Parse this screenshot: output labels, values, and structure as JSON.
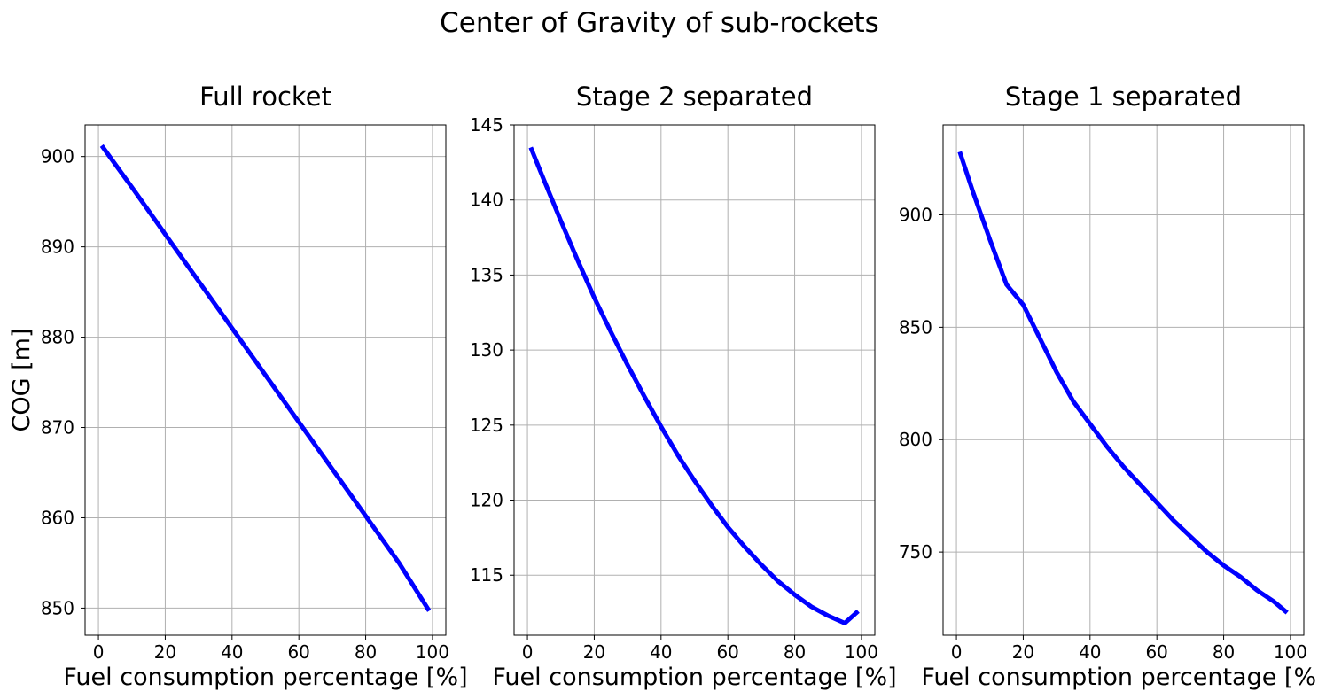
{
  "figure": {
    "suptitle": "Center of Gravity of sub-rockets"
  },
  "chart_data": [
    {
      "type": "line",
      "title": "Full rocket",
      "xlabel": "Fuel consumption percentage [%]",
      "ylabel": "COG [m]",
      "xlim": [
        -4,
        104
      ],
      "ylim": [
        847,
        903.5
      ],
      "xticks": [
        0,
        20,
        40,
        60,
        80,
        100
      ],
      "yticks": [
        850,
        860,
        870,
        880,
        890,
        900
      ],
      "grid": true,
      "color": "#0000ff",
      "series": [
        {
          "x": [
            1,
            10,
            20,
            30,
            40,
            50,
            60,
            70,
            80,
            90,
            99
          ],
          "y": [
            901.2,
            896.6,
            891.4,
            886.2,
            881.0,
            875.8,
            870.6,
            865.4,
            860.2,
            855.0,
            849.7
          ]
        }
      ]
    },
    {
      "type": "line",
      "title": "Stage 2 separated",
      "xlabel": "Fuel consumption percentage [%]",
      "ylabel": "",
      "xlim": [
        -4,
        104
      ],
      "ylim": [
        111,
        145
      ],
      "xticks": [
        0,
        20,
        40,
        60,
        80,
        100
      ],
      "yticks": [
        115,
        120,
        125,
        130,
        135,
        140,
        145
      ],
      "grid": true,
      "color": "#0000ff",
      "series": [
        {
          "x": [
            1,
            5,
            10,
            15,
            20,
            25,
            30,
            35,
            40,
            45,
            50,
            55,
            60,
            65,
            70,
            75,
            80,
            85,
            90,
            95,
            99
          ],
          "y": [
            143.5,
            141.3,
            138.6,
            136.0,
            133.5,
            131.2,
            129.0,
            126.9,
            124.9,
            123.0,
            121.3,
            119.7,
            118.2,
            116.9,
            115.7,
            114.6,
            113.7,
            112.9,
            112.3,
            111.8,
            112.6
          ]
        }
      ]
    },
    {
      "type": "line",
      "title": "Stage 1 separated",
      "xlabel": "Fuel consumption percentage [%]",
      "ylabel": "",
      "xlim": [
        -4,
        104
      ],
      "ylim": [
        713,
        940
      ],
      "xticks": [
        0,
        20,
        40,
        60,
        80,
        100
      ],
      "yticks": [
        750,
        800,
        850,
        900
      ],
      "grid": true,
      "color": "#0000ff",
      "series": [
        {
          "x": [
            1,
            5,
            10,
            15,
            20,
            25,
            30,
            35,
            40,
            45,
            50,
            55,
            60,
            65,
            70,
            75,
            80,
            85,
            90,
            95,
            99
          ],
          "y": [
            928,
            910,
            889,
            869,
            860,
            845,
            830,
            817,
            807,
            797,
            788,
            780,
            772,
            764,
            757,
            750,
            744,
            739,
            733,
            728,
            723
          ]
        }
      ]
    }
  ]
}
